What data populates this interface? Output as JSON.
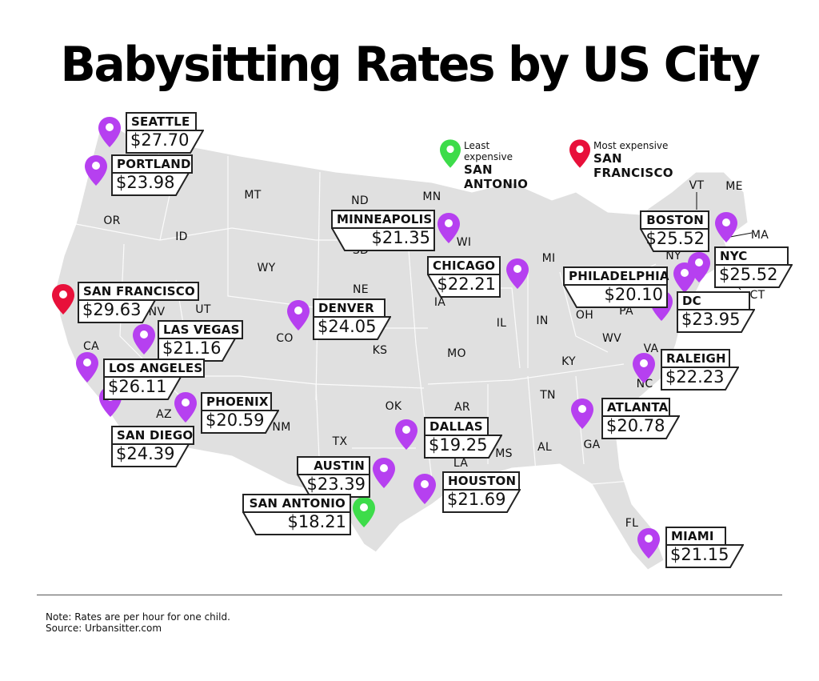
{
  "title": "Babysitting Rates by US City",
  "legend": {
    "least": {
      "caption": "Least expensive",
      "city": "SAN ANTONIO",
      "color": "#3ddc4a"
    },
    "most": {
      "caption": "Most expensive",
      "city": "SAN FRANCISCO",
      "color": "#e8103a"
    }
  },
  "pin_color": "#b640f0",
  "map_fill": "#e0e0e0",
  "cities": [
    {
      "name": "SEATTLE",
      "rate": "$27.70",
      "type": "normal"
    },
    {
      "name": "PORTLAND",
      "rate": "$23.98",
      "type": "normal"
    },
    {
      "name": "SAN FRANCISCO",
      "rate": "$29.63",
      "type": "most"
    },
    {
      "name": "LAS VEGAS",
      "rate": "$21.16",
      "type": "normal"
    },
    {
      "name": "LOS ANGELES",
      "rate": "$26.11",
      "type": "normal"
    },
    {
      "name": "SAN DIEGO",
      "rate": "$24.39",
      "type": "normal"
    },
    {
      "name": "PHOENIX",
      "rate": "$20.59",
      "type": "normal"
    },
    {
      "name": "DENVER",
      "rate": "$24.05",
      "type": "normal"
    },
    {
      "name": "MINNEAPOLIS",
      "rate": "$21.35",
      "type": "normal"
    },
    {
      "name": "CHICAGO",
      "rate": "$22.21",
      "type": "normal"
    },
    {
      "name": "DALLAS",
      "rate": "$19.25",
      "type": "normal"
    },
    {
      "name": "AUSTIN",
      "rate": "$23.39",
      "type": "normal"
    },
    {
      "name": "SAN ANTONIO",
      "rate": "$18.21",
      "type": "least"
    },
    {
      "name": "HOUSTON",
      "rate": "$21.69",
      "type": "normal"
    },
    {
      "name": "BOSTON",
      "rate": "$25.52",
      "type": "normal"
    },
    {
      "name": "NYC",
      "rate": "$25.52",
      "type": "normal"
    },
    {
      "name": "PHILADELPHIA",
      "rate": "$20.10",
      "type": "normal"
    },
    {
      "name": "DC",
      "rate": "$23.95",
      "type": "normal"
    },
    {
      "name": "RALEIGH",
      "rate": "$22.23",
      "type": "normal"
    },
    {
      "name": "ATLANTA",
      "rate": "$20.78",
      "type": "normal"
    },
    {
      "name": "MIAMI",
      "rate": "$21.15",
      "type": "normal"
    }
  ],
  "states": [
    "OR",
    "ID",
    "MT",
    "WY",
    "CA",
    "NV",
    "UT",
    "CO",
    "AZ",
    "NM",
    "ND",
    "SD",
    "NE",
    "KS",
    "OK",
    "TX",
    "MN",
    "IA",
    "MO",
    "AR",
    "LA",
    "WI",
    "IL",
    "MI",
    "IN",
    "OH",
    "KY",
    "TN",
    "MS",
    "AL",
    "GA",
    "FL",
    "WV",
    "VA",
    "NC",
    "PA",
    "NY",
    "VT",
    "ME",
    "MA",
    "CT"
  ],
  "footer": {
    "note": "Note: Rates are per hour for one child.",
    "source": "Source: Urbansitter.com"
  }
}
